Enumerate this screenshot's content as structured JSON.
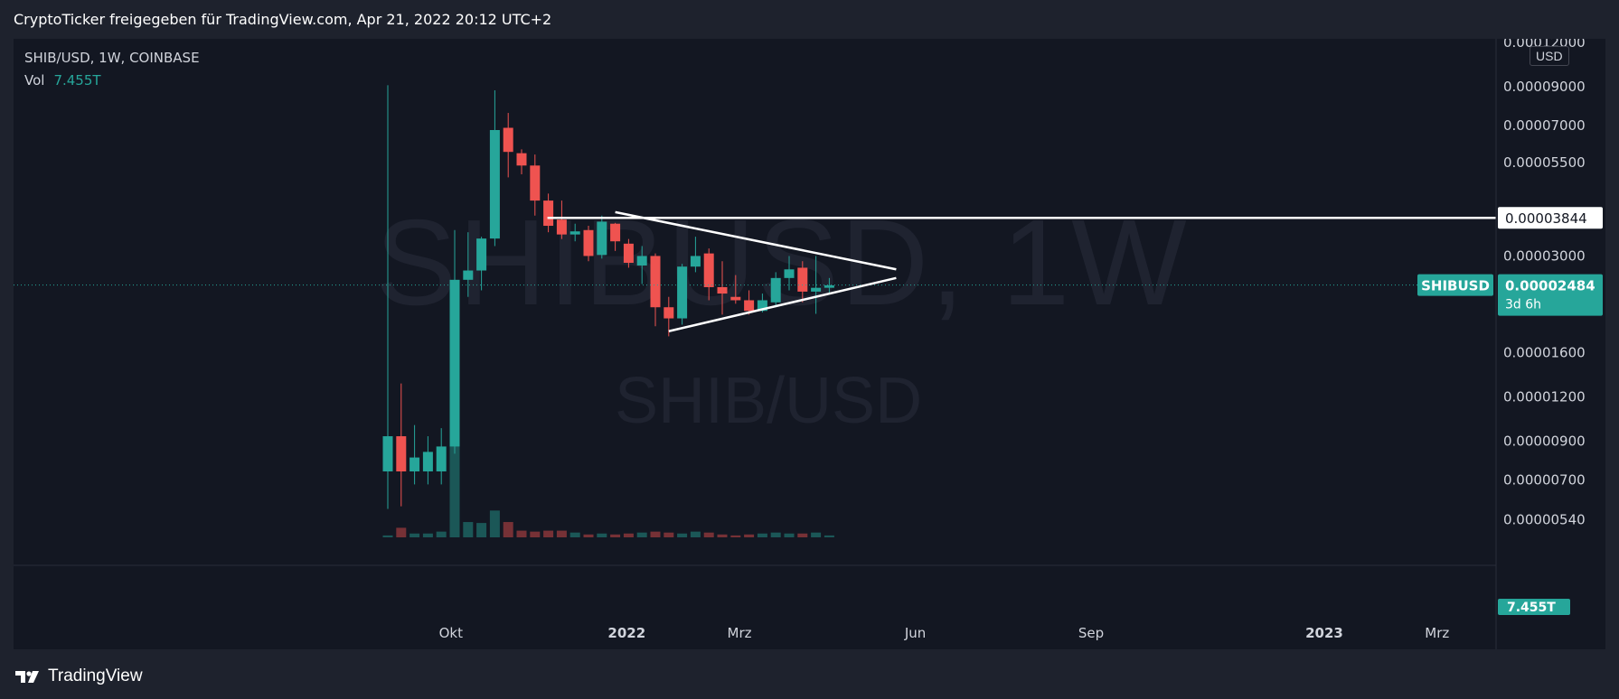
{
  "header": {
    "text": "CryptoTicker freigegeben für TradingView.com, Apr 21, 2022 20:12 UTC+2"
  },
  "symbol_line": "SHIB/USD, 1W, COINBASE",
  "vol": {
    "label": "Vol",
    "value": "7.455T"
  },
  "watermark": {
    "main": "SHIBUSD, 1W",
    "sub": "SHIB/USD"
  },
  "currency": "USD",
  "footer": {
    "brand": "TradingView"
  },
  "colors": {
    "up": "#26a69a",
    "down": "#ef5350",
    "background": "#131722",
    "line": "#ffffff"
  },
  "chart_data": {
    "type": "candlestick",
    "title": "SHIB/USD, 1W, COINBASE",
    "y_scale": "log",
    "ylim": [
      4.6e-06,
      0.000123
    ],
    "y_ticks": [
      "0.00012000",
      "0.00009000",
      "0.00007000",
      "0.00005500",
      "0.00003000",
      "0.00001600",
      "0.00001200",
      "0.00000900",
      "0.00000700",
      "0.00000540"
    ],
    "x_ticks": [
      "Okt",
      "2022",
      "Mrz",
      "Jun",
      "Sep",
      "2023",
      "Mrz"
    ],
    "candles": [
      {
        "date": "2021-08-29",
        "o": 7.4e-06,
        "h": 9.1e-05,
        "l": 5.8e-06,
        "c": 9.3e-06
      },
      {
        "date": "2021-09-05",
        "o": 9.3e-06,
        "h": 1.31e-05,
        "l": 5.9e-06,
        "c": 7.4e-06
      },
      {
        "date": "2021-09-12",
        "o": 7.4e-06,
        "h": 1e-05,
        "l": 6.8e-06,
        "c": 8.1e-06
      },
      {
        "date": "2021-09-19",
        "o": 7.4e-06,
        "h": 9.3e-06,
        "l": 6.8e-06,
        "c": 8.4e-06
      },
      {
        "date": "2021-09-26",
        "o": 7.4e-06,
        "h": 9.8e-06,
        "l": 6.8e-06,
        "c": 8.7e-06
      },
      {
        "date": "2021-10-03",
        "o": 8.7e-06,
        "h": 3.55e-05,
        "l": 8.3e-06,
        "c": 2.57e-05
      },
      {
        "date": "2021-10-10",
        "o": 2.57e-05,
        "h": 3.5e-05,
        "l": 2.3e-05,
        "c": 2.73e-05
      },
      {
        "date": "2021-10-17",
        "o": 2.73e-05,
        "h": 3.4e-05,
        "l": 2.4e-05,
        "c": 3.36e-05
      },
      {
        "date": "2021-10-24",
        "o": 3.36e-05,
        "h": 8.8e-05,
        "l": 3.2e-05,
        "c": 6.8e-05
      },
      {
        "date": "2021-10-31",
        "o": 6.9e-05,
        "h": 7.6e-05,
        "l": 5e-05,
        "c": 5.9e-05
      },
      {
        "date": "2021-11-07",
        "o": 5.85e-05,
        "h": 6e-05,
        "l": 5.1e-05,
        "c": 5.4e-05
      },
      {
        "date": "2021-11-14",
        "o": 5.4e-05,
        "h": 5.8e-05,
        "l": 3.9e-05,
        "c": 4.3e-05
      },
      {
        "date": "2021-11-21",
        "o": 4.3e-05,
        "h": 4.5e-05,
        "l": 3.5e-05,
        "c": 3.65e-05
      },
      {
        "date": "2021-11-28",
        "o": 3.8e-05,
        "h": 4.3e-05,
        "l": 3.35e-05,
        "c": 3.45e-05
      },
      {
        "date": "2021-12-05",
        "o": 3.45e-05,
        "h": 3.7e-05,
        "l": 3.3e-05,
        "c": 3.52e-05
      },
      {
        "date": "2021-12-12",
        "o": 3.55e-05,
        "h": 3.65e-05,
        "l": 2.9e-05,
        "c": 3e-05
      },
      {
        "date": "2021-12-19",
        "o": 3.02e-05,
        "h": 3.9e-05,
        "l": 2.95e-05,
        "c": 3.75e-05
      },
      {
        "date": "2021-12-26",
        "o": 3.7e-05,
        "h": 3.72e-05,
        "l": 3.1e-05,
        "c": 3.3e-05
      },
      {
        "date": "2022-01-02",
        "o": 3.25e-05,
        "h": 3.35e-05,
        "l": 2.78e-05,
        "c": 2.87e-05
      },
      {
        "date": "2022-01-09",
        "o": 2.82e-05,
        "h": 3.2e-05,
        "l": 2.5e-05,
        "c": 3e-05
      },
      {
        "date": "2022-01-16",
        "o": 3e-05,
        "h": 3.05e-05,
        "l": 1.9e-05,
        "c": 2.15e-05
      },
      {
        "date": "2022-01-23",
        "o": 2.15e-05,
        "h": 2.3e-05,
        "l": 1.78e-05,
        "c": 2e-05
      },
      {
        "date": "2022-01-30",
        "o": 2e-05,
        "h": 2.85e-05,
        "l": 1.92e-05,
        "c": 2.8e-05
      },
      {
        "date": "2022-02-06",
        "o": 2.8e-05,
        "h": 3.4e-05,
        "l": 2.7e-05,
        "c": 3e-05
      },
      {
        "date": "2022-02-13",
        "o": 3.05e-05,
        "h": 3.15e-05,
        "l": 2.25e-05,
        "c": 2.45e-05
      },
      {
        "date": "2022-02-20",
        "o": 2.45e-05,
        "h": 2.9e-05,
        "l": 2.05e-05,
        "c": 2.35e-05
      },
      {
        "date": "2022-02-27",
        "o": 2.3e-05,
        "h": 2.65e-05,
        "l": 2.2e-05,
        "c": 2.25e-05
      },
      {
        "date": "2022-03-06",
        "o": 2.25e-05,
        "h": 2.4e-05,
        "l": 2.05e-05,
        "c": 2.1e-05
      },
      {
        "date": "2022-03-13",
        "o": 2.1e-05,
        "h": 2.35e-05,
        "l": 2.08e-05,
        "c": 2.25e-05
      },
      {
        "date": "2022-03-20",
        "o": 2.22e-05,
        "h": 2.7e-05,
        "l": 2.15e-05,
        "c": 2.6e-05
      },
      {
        "date": "2022-03-27",
        "o": 2.6e-05,
        "h": 3e-05,
        "l": 2.4e-05,
        "c": 2.75e-05
      },
      {
        "date": "2022-04-03",
        "o": 2.78e-05,
        "h": 2.9e-05,
        "l": 2.22e-05,
        "c": 2.38e-05
      },
      {
        "date": "2022-04-10",
        "o": 2.38e-05,
        "h": 3e-05,
        "l": 2.06e-05,
        "c": 2.44e-05
      },
      {
        "date": "2022-04-17",
        "o": 2.44e-05,
        "h": 2.6e-05,
        "l": 2.35e-05,
        "c": 2.48e-05
      }
    ],
    "volume_relative": [
      0.02,
      0.1,
      0.04,
      0.04,
      0.06,
      1.0,
      0.16,
      0.15,
      0.28,
      0.16,
      0.07,
      0.06,
      0.07,
      0.07,
      0.05,
      0.03,
      0.04,
      0.03,
      0.04,
      0.05,
      0.06,
      0.05,
      0.04,
      0.06,
      0.05,
      0.03,
      0.02,
      0.03,
      0.04,
      0.05,
      0.04,
      0.04,
      0.05,
      0.02
    ],
    "horizontal_line": {
      "value": 3.844e-05,
      "label": "0.00003844"
    },
    "triangle": {
      "upper": [
        {
          "date": "2021-12-26",
          "value": 3.99e-05
        },
        {
          "date": "2022-05-22",
          "value": 2.75e-05
        }
      ],
      "lower": [
        {
          "date": "2022-01-23",
          "value": 1.84e-05
        },
        {
          "date": "2022-05-22",
          "value": 2.6e-05
        }
      ]
    },
    "last_price": {
      "symbol": "SHIBUSD",
      "value": "0.00002484",
      "countdown": "3d 6h"
    },
    "volume_badge": "7.455T"
  }
}
